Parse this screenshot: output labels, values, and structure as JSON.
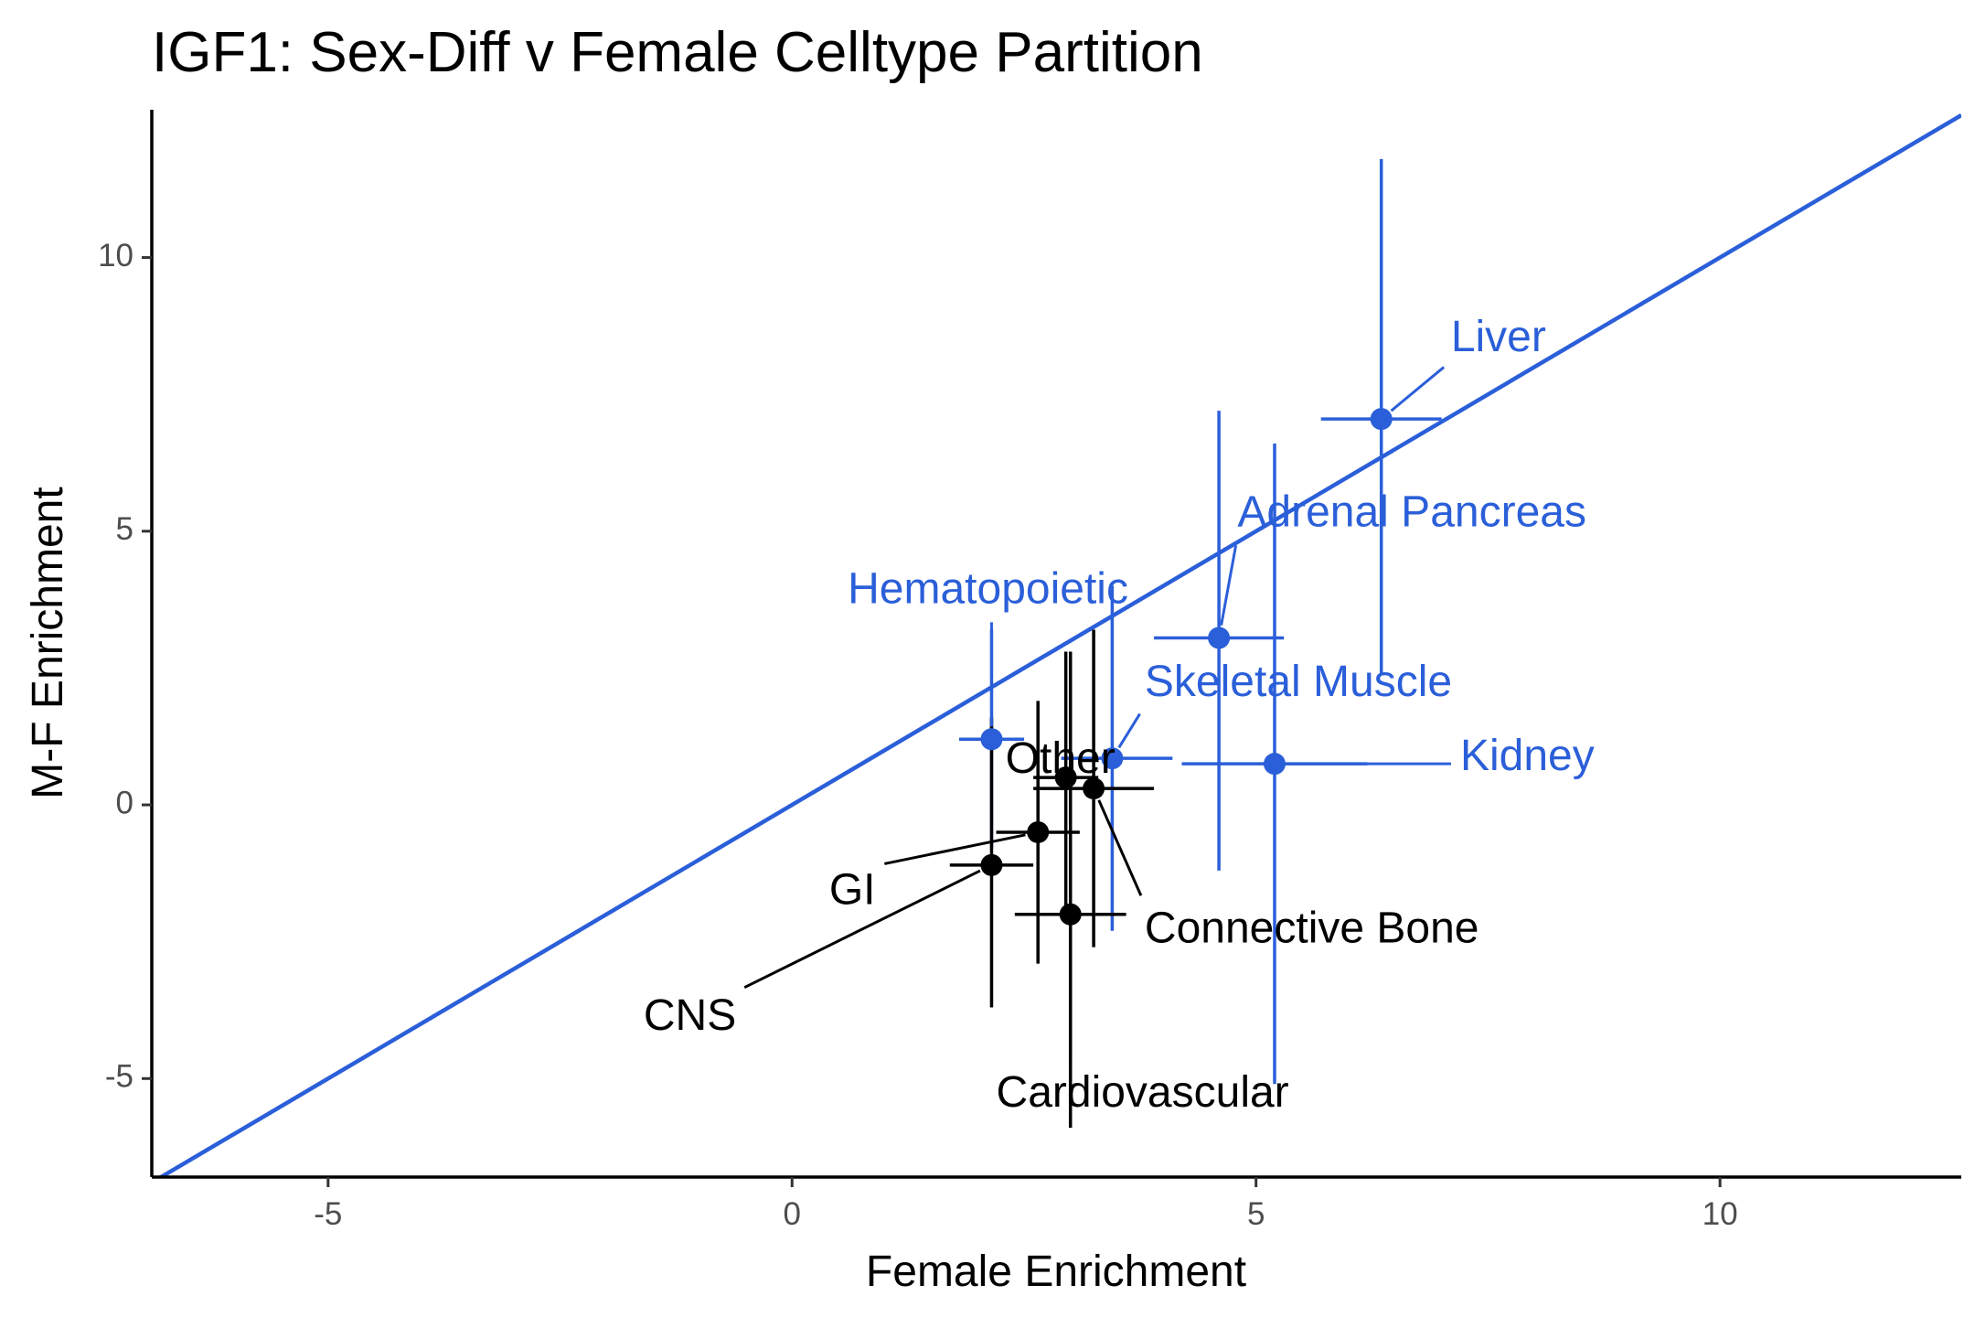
{
  "chart_data": {
    "type": "scatter",
    "title": "IGF1: Sex-Diff v Female Celltype Partition",
    "xlabel": "Female Enrichment",
    "ylabel": "M-F Enrichment",
    "xlim": [
      -6.9,
      12.6
    ],
    "ylim": [
      -6.8,
      12.7
    ],
    "x_ticks": [
      -5,
      0,
      5,
      10
    ],
    "y_ticks": [
      -5,
      0,
      5,
      10
    ],
    "x_tick_labels": [
      "-5",
      "0",
      "5",
      "10"
    ],
    "y_tick_labels": [
      "-5",
      "0",
      "5",
      "10"
    ],
    "grid": false,
    "legend": "none",
    "reference_line": {
      "slope": 1,
      "intercept": 0,
      "color": "#2b5fd9"
    },
    "colors": {
      "highlighted": "#2b5fd9",
      "other": "#000000"
    },
    "points": [
      {
        "label": "Liver",
        "group": "highlighted",
        "x": 6.35,
        "y": 7.05,
        "xmin": 5.7,
        "xmax": 7.0,
        "ymin": 2.4,
        "ymax": 11.8,
        "label_x": 7.1,
        "label_y": 8.5
      },
      {
        "label": "Adrenal Pancreas",
        "group": "highlighted",
        "x": 4.6,
        "y": 3.05,
        "xmin": 3.9,
        "xmax": 5.3,
        "ymin": -1.2,
        "ymax": 7.2,
        "label_x": 4.8,
        "label_y": 5.3
      },
      {
        "label": "Hematopoietic",
        "group": "highlighted",
        "x": 2.15,
        "y": 1.2,
        "xmin": 1.8,
        "xmax": 2.5,
        "ymin": -0.8,
        "ymax": 3.2,
        "label_x": 0.6,
        "label_y": 3.9
      },
      {
        "label": "Skeletal Muscle",
        "group": "highlighted",
        "x": 3.45,
        "y": 0.85,
        "xmin": 2.9,
        "xmax": 4.1,
        "ymin": -2.3,
        "ymax": 4.0,
        "label_x": 3.8,
        "label_y": 2.2
      },
      {
        "label": "Kidney",
        "group": "highlighted",
        "x": 5.2,
        "y": 0.75,
        "xmin": 4.2,
        "xmax": 6.2,
        "ymin": -5.1,
        "ymax": 6.6,
        "label_x": 7.2,
        "label_y": 0.85
      },
      {
        "label": "Other",
        "group": "other",
        "x": 2.95,
        "y": 0.5,
        "xmin": 2.6,
        "xmax": 3.3,
        "ymin": -2.0,
        "ymax": 2.8,
        "label_x": 2.3,
        "label_y": 0.8
      },
      {
        "label": "Connective Bone",
        "group": "other",
        "x": 3.25,
        "y": 0.3,
        "xmin": 2.6,
        "xmax": 3.9,
        "ymin": -2.6,
        "ymax": 3.2,
        "label_x": 3.8,
        "label_y": -2.3
      },
      {
        "label": "GI",
        "group": "other",
        "x": 2.65,
        "y": -0.5,
        "xmin": 2.2,
        "xmax": 3.1,
        "ymin": -2.9,
        "ymax": 1.9,
        "label_x": 0.4,
        "label_y": -1.6
      },
      {
        "label": "CNS",
        "group": "other",
        "x": 2.15,
        "y": -1.1,
        "xmin": 1.7,
        "xmax": 2.6,
        "ymin": -3.7,
        "ymax": 1.6,
        "label_x": -1.6,
        "label_y": -3.9
      },
      {
        "label": "Cardiovascular",
        "group": "other",
        "x": 3.0,
        "y": -2.0,
        "xmin": 2.4,
        "xmax": 3.6,
        "ymin": -5.9,
        "ymax": 2.8,
        "label_x": 2.2,
        "label_y": -5.3
      }
    ]
  }
}
